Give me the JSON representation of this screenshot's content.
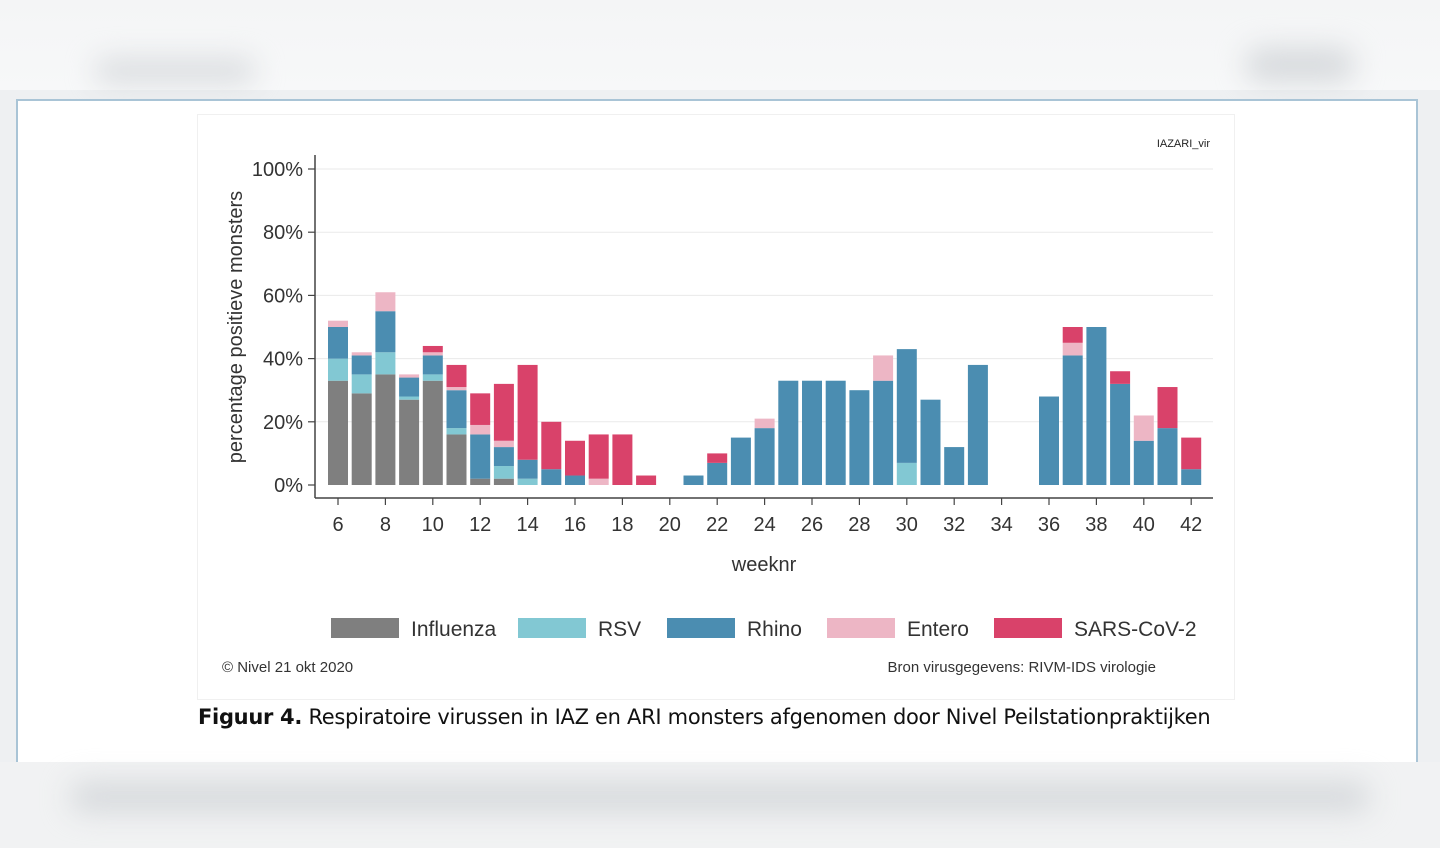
{
  "caption": {
    "label": "Figuur 4.",
    "text": "Respiratoire virussen in IAZ en ARI monsters afgenomen door Nivel Peilstationpraktijken"
  },
  "chart_data": {
    "type": "bar",
    "stacked": true,
    "tag": "IAZARI_vir",
    "ylabel": "percentage positieve monsters",
    "xlabel": "weeknr",
    "ylim": [
      0,
      100
    ],
    "yticks": [
      0,
      20,
      40,
      60,
      80,
      100
    ],
    "ytick_labels": [
      "0%",
      "20%",
      "40%",
      "60%",
      "80%",
      "100%"
    ],
    "xticks": [
      6,
      8,
      10,
      12,
      14,
      16,
      18,
      20,
      22,
      24,
      26,
      28,
      30,
      32,
      34,
      36,
      38,
      40,
      42
    ],
    "xlim": [
      6,
      42
    ],
    "weeks": [
      6,
      7,
      8,
      9,
      10,
      11,
      12,
      13,
      14,
      15,
      16,
      17,
      18,
      19,
      20,
      21,
      22,
      23,
      24,
      25,
      26,
      27,
      28,
      29,
      30,
      31,
      32,
      33,
      34,
      35,
      36,
      37,
      38,
      39,
      40,
      41,
      42
    ],
    "series": [
      {
        "name": "Influenza",
        "color": "#7f7f7f",
        "values": [
          33,
          29,
          35,
          27,
          33,
          16,
          2,
          2,
          0,
          0,
          0,
          0,
          0,
          0,
          0,
          0,
          0,
          0,
          0,
          0,
          0,
          0,
          0,
          0,
          0,
          0,
          0,
          0,
          0,
          0,
          0,
          0,
          0,
          0,
          0,
          0,
          0
        ]
      },
      {
        "name": "RSV",
        "color": "#82c8d3",
        "values": [
          7,
          6,
          7,
          1,
          2,
          2,
          0,
          4,
          2,
          0,
          0,
          0,
          0,
          0,
          0,
          0,
          0,
          0,
          0,
          0,
          0,
          0,
          0,
          0,
          7,
          0,
          0,
          0,
          0,
          0,
          0,
          0,
          0,
          0,
          0,
          0,
          0
        ]
      },
      {
        "name": "Rhino",
        "color": "#4b8db1",
        "values": [
          10,
          6,
          13,
          6,
          6,
          12,
          14,
          6,
          6,
          5,
          3,
          0,
          0,
          0,
          0,
          3,
          7,
          15,
          18,
          33,
          33,
          33,
          30,
          33,
          36,
          27,
          12,
          38,
          0,
          0,
          28,
          41,
          50,
          32,
          14,
          18,
          5
        ]
      },
      {
        "name": "Entero",
        "color": "#edb6c5",
        "values": [
          2,
          1,
          6,
          1,
          1,
          1,
          3,
          2,
          0,
          0,
          0,
          2,
          0,
          0,
          0,
          0,
          0,
          0,
          3,
          0,
          0,
          0,
          0,
          8,
          0,
          0,
          0,
          0,
          0,
          0,
          0,
          4,
          0,
          0,
          8,
          0,
          0
        ]
      },
      {
        "name": "SARS-CoV-2",
        "color": "#d9426a",
        "values": [
          0,
          0,
          0,
          0,
          2,
          7,
          10,
          18,
          30,
          15,
          11,
          14,
          16,
          3,
          0,
          0,
          3,
          0,
          0,
          0,
          0,
          0,
          0,
          0,
          0,
          0,
          0,
          0,
          0,
          0,
          0,
          5,
          0,
          4,
          0,
          13,
          10
        ]
      }
    ],
    "footer_left": "© Nivel 21 okt 2020",
    "footer_right": "Bron virusgegevens: RIVM-IDS virologie"
  }
}
